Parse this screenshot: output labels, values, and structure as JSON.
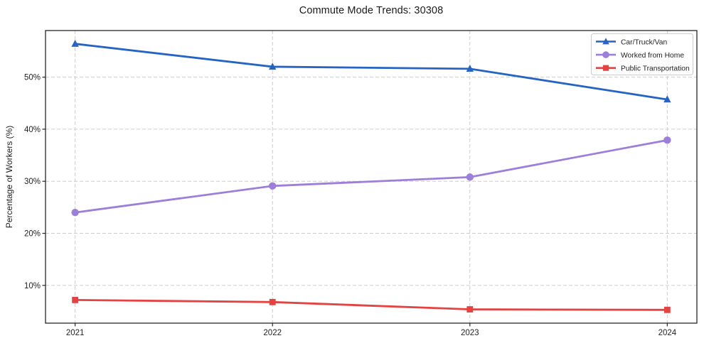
{
  "chart_data": {
    "type": "line",
    "title": "Commute Mode Trends: 30308",
    "xlabel": "",
    "ylabel": "Percentage of Workers (%)",
    "x": [
      2021,
      2022,
      2023,
      2024
    ],
    "x_tick_labels": [
      "2021",
      "2022",
      "2023",
      "2024"
    ],
    "y_ticks": [
      10,
      20,
      30,
      40,
      50
    ],
    "y_tick_labels": [
      "10%",
      "20%",
      "30%",
      "40%",
      "50%"
    ],
    "xlim": [
      2020.85,
      2024.15
    ],
    "ylim": [
      2.75,
      58.95
    ],
    "grid": true,
    "grid_style": "dashed",
    "legend_position": "upper right",
    "series": [
      {
        "name": "Car/Truck/Van",
        "marker": "triangle",
        "color": "#2564c4",
        "values": [
          56.4,
          52.0,
          51.6,
          45.7
        ]
      },
      {
        "name": "Worked from Home",
        "marker": "circle",
        "color": "#9d7ed9",
        "values": [
          24.0,
          29.1,
          30.8,
          37.9
        ]
      },
      {
        "name": "Public Transportation",
        "marker": "square",
        "color": "#e34343",
        "values": [
          7.2,
          6.8,
          5.4,
          5.3
        ]
      }
    ],
    "colors": {
      "background": "#ffffff",
      "grid": "#cccccc",
      "plot_border": "#262626",
      "text": "#1f1f1f",
      "legend_border": "#cccccc",
      "legend_background": "#ffffff"
    }
  }
}
